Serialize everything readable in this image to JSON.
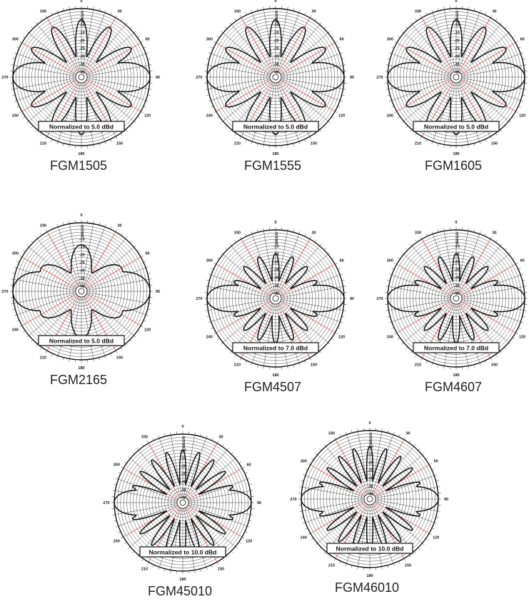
{
  "chart_data": [
    {
      "type": "polar",
      "model": "FGM1505",
      "normalization": "Normalized to 5.0 dBd",
      "angle_labels": [
        "0",
        "30",
        "60",
        "90",
        "120",
        "150",
        "180",
        "210",
        "240",
        "270",
        "300",
        "330"
      ],
      "radial_tick_labels": [
        "-2",
        "-4",
        "-6",
        "-8",
        "-10",
        "-15",
        "-20",
        "-25",
        "-30",
        "-35",
        "-40"
      ],
      "rlim_db": [
        -40,
        0
      ],
      "lobes": 12,
      "main_lobes_deg": [
        90,
        270
      ],
      "main_lobe_db": 0,
      "side_lobe_db": -7,
      "null_db": -30,
      "grid": true
    },
    {
      "type": "polar",
      "model": "FGM1555",
      "normalization": "Normalized to 5.0 dBd",
      "angle_labels": [
        "0",
        "30",
        "60",
        "90",
        "120",
        "150",
        "180",
        "210",
        "240",
        "270",
        "300",
        "330"
      ],
      "radial_tick_labels": [
        "-2",
        "-4",
        "-6",
        "-8",
        "-10",
        "-15",
        "-20",
        "-25",
        "-30",
        "-35",
        "-40"
      ],
      "rlim_db": [
        -40,
        0
      ],
      "lobes": 12,
      "main_lobes_deg": [
        90,
        270
      ],
      "main_lobe_db": 0,
      "side_lobe_db": -7,
      "null_db": -30,
      "grid": true
    },
    {
      "type": "polar",
      "model": "FGM1605",
      "normalization": "Normalized to 5.0 dBd",
      "angle_labels": [
        "0",
        "30",
        "60",
        "90",
        "120",
        "150",
        "180",
        "210",
        "240",
        "270",
        "300",
        "330"
      ],
      "radial_tick_labels": [
        "-2",
        "-4",
        "-6",
        "-8",
        "-10",
        "-15",
        "-20",
        "-25",
        "-30",
        "-35",
        "-40"
      ],
      "rlim_db": [
        -40,
        0
      ],
      "lobes": 12,
      "main_lobes_deg": [
        90,
        270
      ],
      "main_lobe_db": 0,
      "side_lobe_db": -7,
      "null_db": -30,
      "grid": true
    },
    {
      "type": "polar",
      "model": "FGM2165",
      "normalization": "Normalized to 5.0 dBd",
      "angle_labels": [
        "0",
        "30",
        "60",
        "90",
        "120",
        "150",
        "180",
        "210",
        "240",
        "270",
        "300",
        "330"
      ],
      "radial_tick_labels": [
        "-2",
        "-4",
        "-6",
        "-8",
        "-10",
        "-15",
        "-20",
        "-25",
        "-30",
        "-35",
        "-40"
      ],
      "rlim_db": [
        -40,
        0
      ],
      "lobes": 6,
      "main_lobes_deg": [
        90,
        270
      ],
      "main_lobe_db": 0,
      "side_lobe_db": -14,
      "null_db": -30,
      "grid": true
    },
    {
      "type": "polar",
      "model": "FGM4507",
      "normalization": "Normalized to 7.0 dBd",
      "angle_labels": [
        "0",
        "30",
        "60",
        "90",
        "120",
        "150",
        "180",
        "210",
        "240",
        "270",
        "300",
        "330"
      ],
      "radial_tick_labels": [
        "-2",
        "-4",
        "-6",
        "-8",
        "-10",
        "-15",
        "-20",
        "-25",
        "-30",
        "-35",
        "-40"
      ],
      "rlim_db": [
        -40,
        0
      ],
      "lobes": 16,
      "main_lobes_deg": [
        90,
        270
      ],
      "main_lobe_db": 0,
      "side_lobe_db": -15,
      "null_db": -32,
      "grid": true
    },
    {
      "type": "polar",
      "model": "FGM4607",
      "normalization": "Normalized to 7.0 dBd",
      "angle_labels": [
        "0",
        "30",
        "60",
        "90",
        "120",
        "150",
        "180",
        "210",
        "240",
        "270",
        "300",
        "330"
      ],
      "radial_tick_labels": [
        "-2",
        "-4",
        "-6",
        "-8",
        "-10",
        "-15",
        "-20",
        "-25",
        "-30",
        "-35",
        "-40"
      ],
      "rlim_db": [
        -40,
        0
      ],
      "lobes": 16,
      "main_lobes_deg": [
        90,
        270
      ],
      "main_lobe_db": 0,
      "side_lobe_db": -15,
      "null_db": -32,
      "grid": true
    },
    {
      "type": "polar",
      "model": "FGM45010",
      "normalization": "Normalized to 10.0 dBd",
      "angle_labels": [
        "0",
        "30",
        "60",
        "90",
        "120",
        "150",
        "180",
        "210",
        "240",
        "270",
        "300",
        "330"
      ],
      "radial_tick_labels": [
        "-2",
        "-4",
        "-6",
        "-8",
        "-10",
        "-15",
        "-20",
        "-25",
        "-30",
        "-35",
        "-40"
      ],
      "rlim_db": [
        -40,
        0
      ],
      "lobes": 20,
      "main_lobes_deg": [
        90,
        270
      ],
      "main_lobe_db": 0,
      "side_lobe_db": -10,
      "null_db": -32,
      "grid": true
    },
    {
      "type": "polar",
      "model": "FGM46010",
      "normalization": "Normalized to 10.0 dBd",
      "angle_labels": [
        "0",
        "30",
        "60",
        "90",
        "120",
        "150",
        "180",
        "210",
        "240",
        "270",
        "300",
        "330"
      ],
      "radial_tick_labels": [
        "-2",
        "-4",
        "-6",
        "-8",
        "-10",
        "-15",
        "-20",
        "-25",
        "-30",
        "-35",
        "-40"
      ],
      "rlim_db": [
        -40,
        0
      ],
      "lobes": 20,
      "main_lobes_deg": [
        90,
        270
      ],
      "main_lobe_db": 0,
      "side_lobe_db": -10,
      "null_db": -32,
      "grid": true
    }
  ]
}
